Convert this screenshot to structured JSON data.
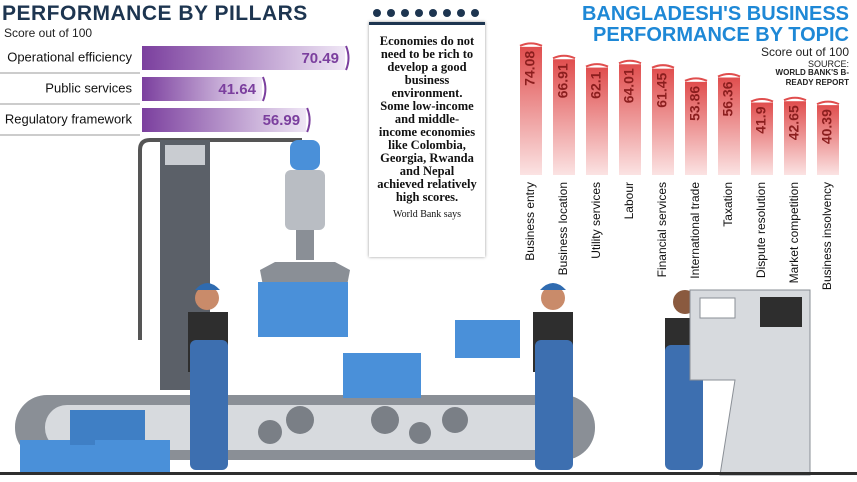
{
  "chart_data": [
    {
      "type": "bar",
      "orientation": "horizontal",
      "title": "PERFORMANCE BY PILLARS",
      "subtitle": "Score out of 100",
      "categories": [
        "Operational efficiency",
        "Public services",
        "Regulatory framework"
      ],
      "values": [
        70.49,
        41.64,
        56.99
      ],
      "color": "#7b3f9e",
      "xlim": [
        0,
        100
      ]
    },
    {
      "type": "bar",
      "orientation": "vertical",
      "title": "BANGLADESH'S BUSINESS PERFORMANCE BY TOPIC",
      "subtitle": "Score out of 100",
      "source_label": "SOURCE:",
      "source": "WORLD BANK'S B-READY REPORT",
      "categories": [
        "Business entry",
        "Business location",
        "Utility services",
        "Labour",
        "Financial services",
        "International trade",
        "Taxation",
        "Dispute resolution",
        "Market competition",
        "Business insolvency"
      ],
      "values": [
        74.08,
        66.91,
        62.1,
        64.01,
        61.45,
        53.86,
        56.36,
        41.9,
        42.65,
        40.39
      ],
      "color": "#e04e4e",
      "ylim": [
        0,
        100
      ]
    }
  ],
  "note": {
    "text": "Economies do not need to be rich to develop a good business environment. Some low-income and middle-income economies like Colombia, Georgia, Rwanda and Nepal achieved relatively high scores.",
    "attribution": "World Bank says"
  }
}
